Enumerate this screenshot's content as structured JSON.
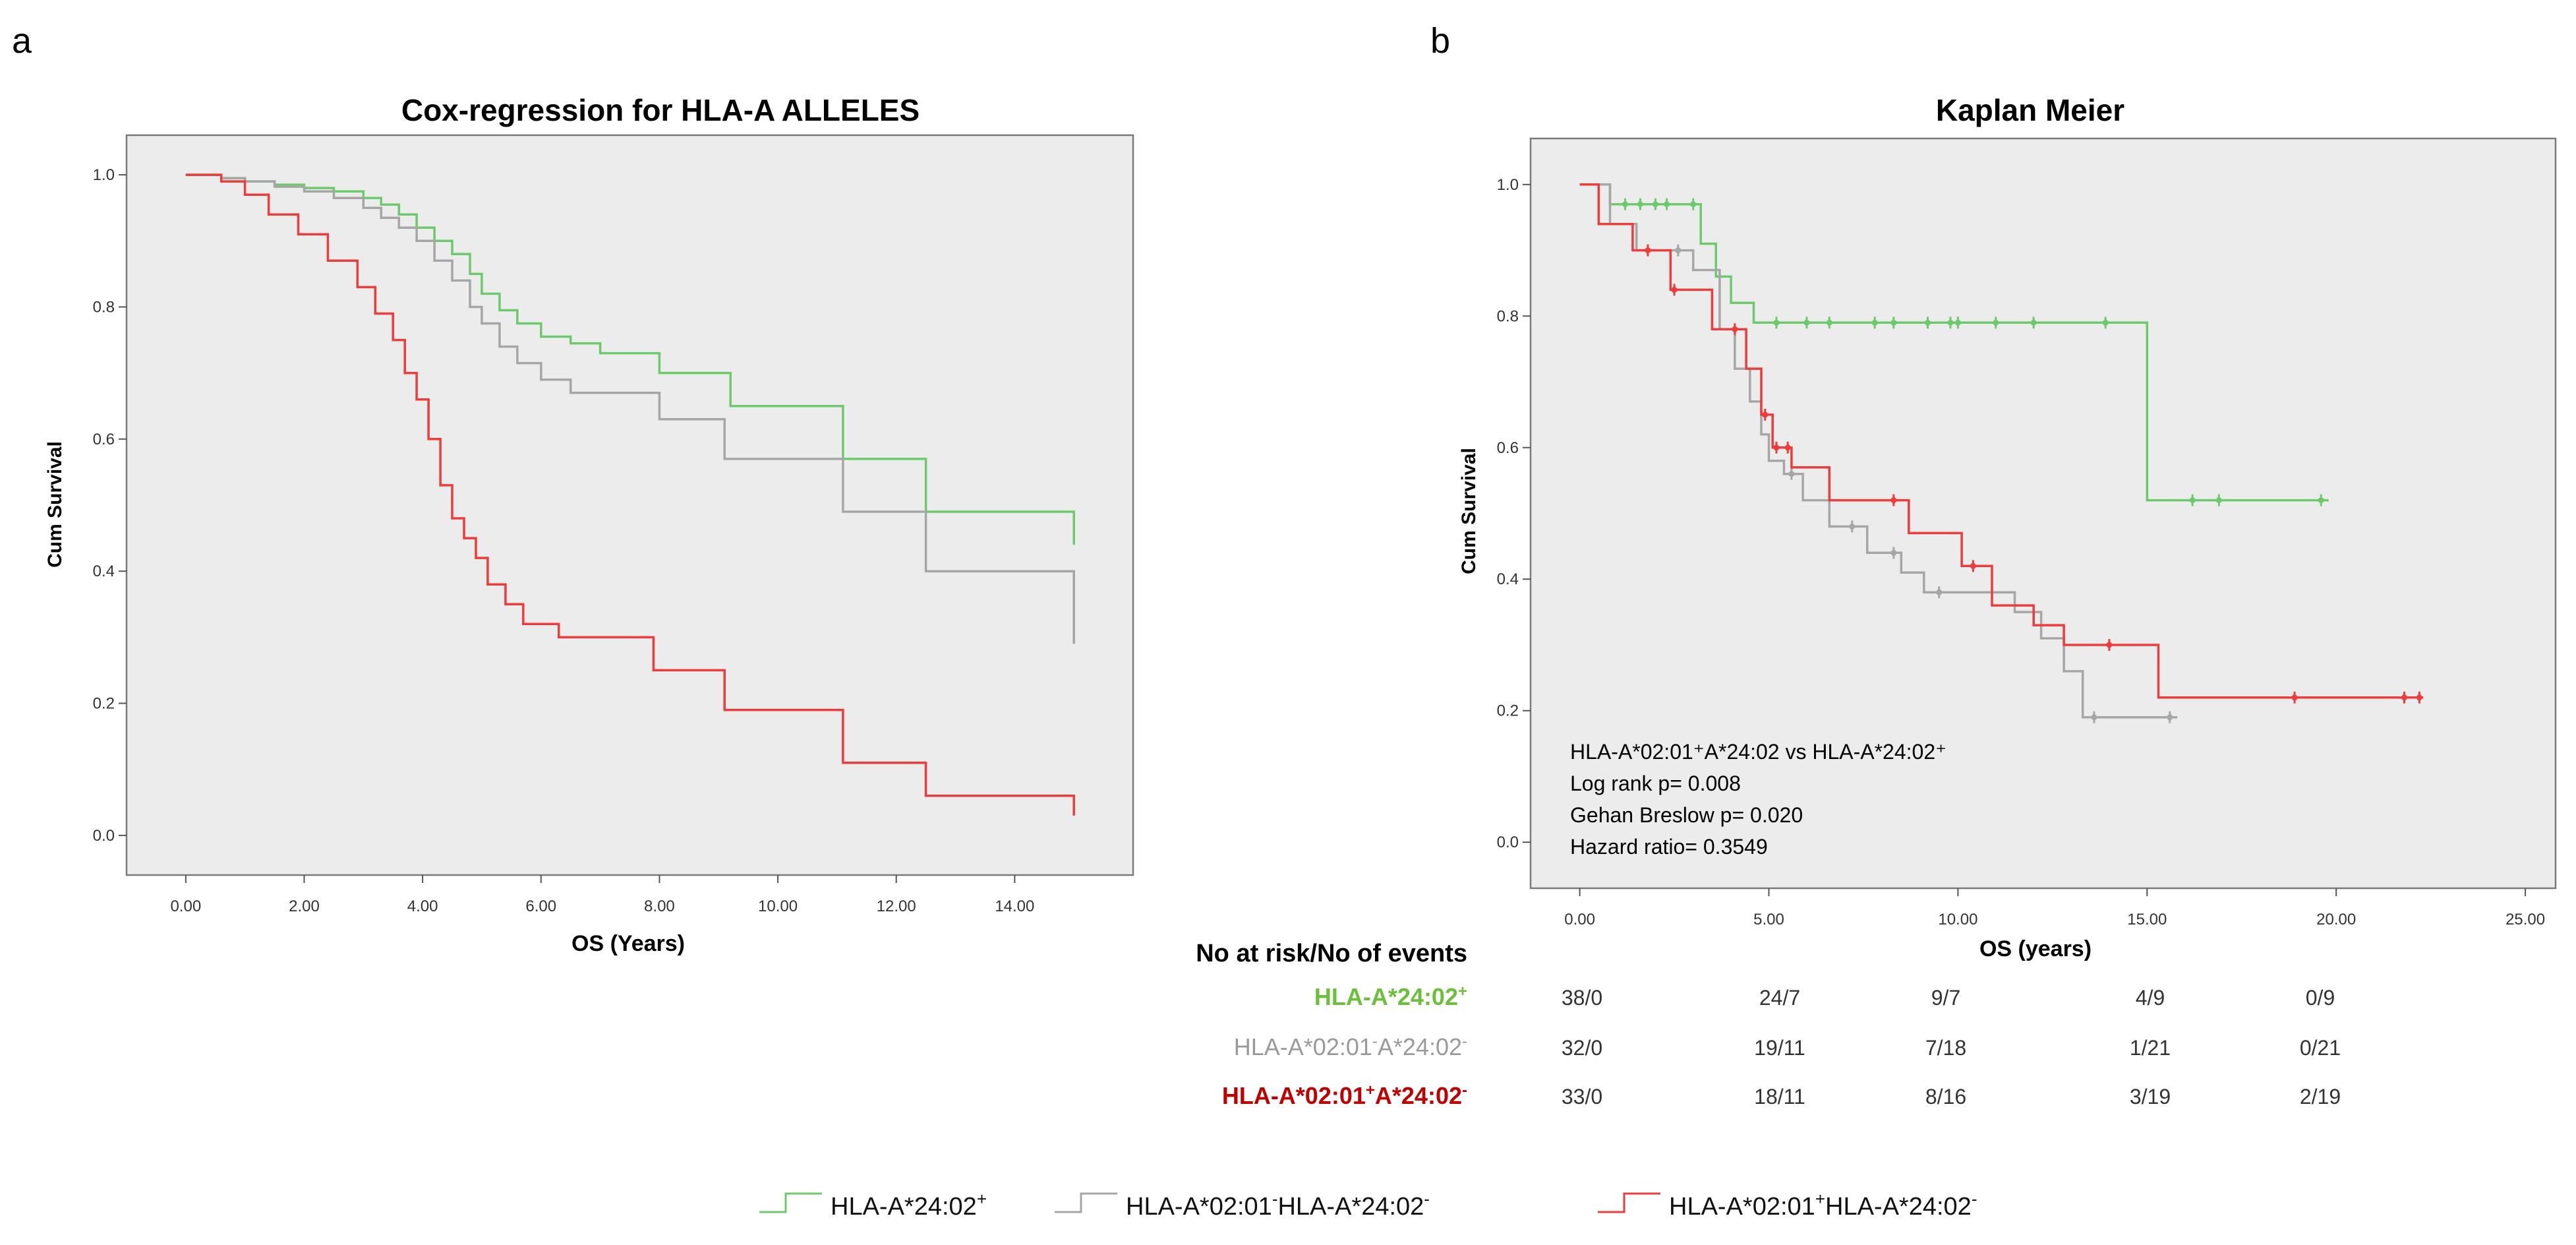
{
  "panel_labels": {
    "a": "a",
    "b": "b"
  },
  "colors": {
    "green": "#6cc96c",
    "gray": "#a6a6a6",
    "red": "#ee3b3b",
    "green_text": "#6bbf3a",
    "gray_text": "#9a9a9a",
    "red_text": "#c00000",
    "plot_bg": "#ececec",
    "frame": "#7a7a7a"
  },
  "chart_data": [
    {
      "type": "line",
      "subtype": "step",
      "title": "Cox-regression for HLA-A ALLELES",
      "xlabel": "OS (Years)",
      "ylabel": "Cum Survival",
      "xlim": [
        -1,
        16
      ],
      "ylim": [
        -0.06,
        1.06
      ],
      "xticks": [
        0,
        2,
        4,
        6,
        8,
        10,
        12,
        14
      ],
      "xtick_labels": [
        "0.00",
        "2.00",
        "4.00",
        "6.00",
        "8.00",
        "10.00",
        "12.00",
        "14.00"
      ],
      "yticks": [
        0,
        0.2,
        0.4,
        0.6,
        0.8,
        1.0
      ],
      "ytick_labels": [
        "0.0",
        "0.2",
        "0.4",
        "0.6",
        "0.8",
        "1.0"
      ],
      "series": [
        {
          "name": "HLA-A*24:02+",
          "color": "green",
          "x": [
            0,
            0.6,
            1.0,
            1.5,
            2.0,
            2.5,
            3.0,
            3.3,
            3.6,
            3.9,
            4.2,
            4.5,
            4.8,
            5.0,
            5.3,
            5.6,
            6.0,
            6.5,
            7.0,
            8.0,
            9.2,
            11.1,
            12.5,
            14.9,
            15.0
          ],
          "y": [
            1.0,
            0.995,
            0.99,
            0.985,
            0.98,
            0.975,
            0.965,
            0.955,
            0.94,
            0.92,
            0.9,
            0.88,
            0.85,
            0.82,
            0.795,
            0.775,
            0.755,
            0.745,
            0.73,
            0.7,
            0.65,
            0.57,
            0.49,
            0.49,
            0.44
          ]
        },
        {
          "name": "HLA-A*02:01-HLA-A*24:02-",
          "color": "gray",
          "x": [
            0,
            0.6,
            1.0,
            1.5,
            2.0,
            2.5,
            3.0,
            3.3,
            3.6,
            3.9,
            4.2,
            4.5,
            4.8,
            5.0,
            5.3,
            5.6,
            6.0,
            6.5,
            8.0,
            9.1,
            11.1,
            12.5,
            14.9,
            15.0
          ],
          "y": [
            1.0,
            0.995,
            0.99,
            0.982,
            0.975,
            0.965,
            0.95,
            0.935,
            0.92,
            0.9,
            0.87,
            0.84,
            0.8,
            0.775,
            0.74,
            0.715,
            0.69,
            0.67,
            0.63,
            0.57,
            0.49,
            0.4,
            0.4,
            0.29
          ]
        },
        {
          "name": "HLA-A*02:01+HLA-A*24:02-",
          "color": "red",
          "x": [
            0,
            0.6,
            1.0,
            1.4,
            1.9,
            2.4,
            2.9,
            3.2,
            3.5,
            3.7,
            3.9,
            4.1,
            4.3,
            4.5,
            4.7,
            4.9,
            5.1,
            5.4,
            5.7,
            6.3,
            7.9,
            9.1,
            11.1,
            12.5,
            14.9,
            15.0
          ],
          "y": [
            1.0,
            0.99,
            0.97,
            0.94,
            0.91,
            0.87,
            0.83,
            0.79,
            0.75,
            0.7,
            0.66,
            0.6,
            0.53,
            0.48,
            0.45,
            0.42,
            0.38,
            0.35,
            0.32,
            0.3,
            0.25,
            0.19,
            0.11,
            0.06,
            0.06,
            0.03
          ]
        }
      ]
    },
    {
      "type": "line",
      "subtype": "kaplan-meier-step",
      "title": "Kaplan Meier",
      "xlabel": "OS (years)",
      "ylabel": "Cum Survival",
      "xlim": [
        -1.3,
        25.8
      ],
      "ylim": [
        -0.07,
        1.07
      ],
      "xticks": [
        0,
        5,
        10,
        15,
        20,
        25
      ],
      "xtick_labels": [
        "0.00",
        "5.00",
        "10.00",
        "15.00",
        "20.00",
        "25.00"
      ],
      "yticks": [
        0,
        0.2,
        0.4,
        0.6,
        0.8,
        1.0
      ],
      "ytick_labels": [
        "0.0",
        "0.2",
        "0.4",
        "0.6",
        "0.8",
        "1.0"
      ],
      "series": [
        {
          "name": "HLA-A*24:02+",
          "color": "green",
          "x": [
            0,
            0.8,
            3.2,
            3.6,
            4.0,
            4.6,
            15.0,
            19.8
          ],
          "y": [
            1.0,
            0.97,
            0.91,
            0.86,
            0.82,
            0.79,
            0.52,
            0.52
          ],
          "censor_x": [
            1.2,
            1.6,
            2.0,
            2.3,
            3.0,
            5.2,
            6.0,
            6.6,
            7.8,
            8.3,
            9.2,
            9.8,
            10.0,
            11.0,
            12.0,
            13.9,
            16.2,
            16.9,
            19.6
          ]
        },
        {
          "name": "HLA-A*02:01-HLA-A*24:02-",
          "color": "gray",
          "x": [
            0,
            0.8,
            1.5,
            3.0,
            3.7,
            4.1,
            4.5,
            4.8,
            5.0,
            5.4,
            5.9,
            6.6,
            7.6,
            8.5,
            9.1,
            11.5,
            12.2,
            12.8,
            13.3,
            15.8
          ],
          "y": [
            1.0,
            0.94,
            0.9,
            0.87,
            0.78,
            0.72,
            0.67,
            0.62,
            0.58,
            0.56,
            0.52,
            0.48,
            0.44,
            0.41,
            0.38,
            0.35,
            0.31,
            0.26,
            0.19,
            0.19
          ],
          "censor_x": [
            2.6,
            5.6,
            7.2,
            8.3,
            9.5,
            13.6,
            15.6
          ]
        },
        {
          "name": "HLA-A*02:01+HLA-A*24:02-",
          "color": "red",
          "x": [
            0,
            0.5,
            1.4,
            2.4,
            3.5,
            4.4,
            4.8,
            5.1,
            5.6,
            6.6,
            8.7,
            10.1,
            10.9,
            12.0,
            12.8,
            13.3,
            14.2,
            15.3,
            22.3
          ],
          "y": [
            1.0,
            0.94,
            0.9,
            0.84,
            0.78,
            0.72,
            0.65,
            0.6,
            0.57,
            0.52,
            0.47,
            0.42,
            0.36,
            0.33,
            0.3,
            0.3,
            0.3,
            0.22,
            0.22
          ],
          "censor_x": [
            1.8,
            2.5,
            4.1,
            4.9,
            5.2,
            5.5,
            8.3,
            10.4,
            14.0,
            18.9,
            21.8,
            22.2
          ]
        }
      ],
      "annotations": [
        "HLA-A*02:01⁺A*24:02 vs HLA-A*24:02⁺",
        "Log rank p= 0.008",
        "Gehan Breslow p= 0.020",
        "Hazard ratio= 0.3549"
      ]
    }
  ],
  "risk_table": {
    "header": "No at risk/No of events",
    "rows": [
      {
        "label_base": "HLA-A*24:02",
        "label_sup": "+",
        "label_rest": "",
        "label_sup2": "",
        "color": "green_text",
        "cells": [
          "38/0",
          "24/7",
          "9/7",
          "4/9",
          "0/9"
        ]
      },
      {
        "label_base": "HLA-A*02:01",
        "label_sup": "-",
        "label_rest": "A*24:02",
        "label_sup2": "-",
        "color": "gray_text",
        "cells": [
          "32/0",
          "19/11",
          "7/18",
          "1/21",
          "0/21"
        ]
      },
      {
        "label_base": "HLA-A*02:01",
        "label_sup": "+",
        "label_rest": "A*24:02",
        "label_sup2": "-",
        "color": "red_text",
        "cells": [
          "33/0",
          "18/11",
          "8/16",
          "3/19",
          "2/19"
        ]
      }
    ]
  },
  "legend": [
    {
      "base": "HLA-A*24:02",
      "sup": "+",
      "rest": "",
      "sup2": "",
      "color": "green"
    },
    {
      "base": "HLA-A*02:01",
      "sup": "-",
      "rest": "HLA-A*24:02",
      "sup2": "-",
      "color": "gray"
    },
    {
      "base": "HLA-A*02:01",
      "sup": "+",
      "rest": "HLA-A*24:02",
      "sup2": "-",
      "color": "red"
    }
  ]
}
